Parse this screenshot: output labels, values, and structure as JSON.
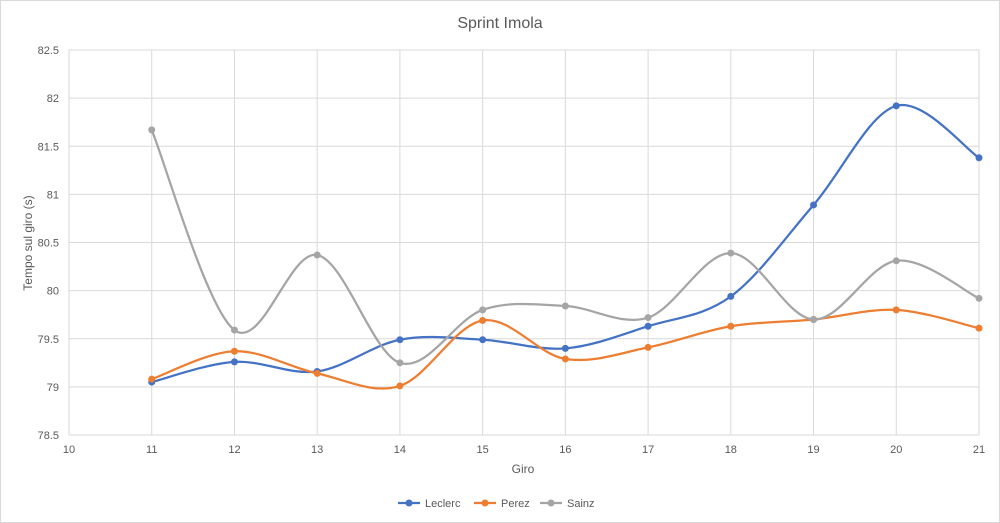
{
  "chart_data": {
    "type": "line",
    "title": "Sprint Imola",
    "xlabel": "Giro",
    "ylabel": "Tempo sul giro (s)",
    "xlim": [
      10,
      21
    ],
    "ylim": [
      78.5,
      82.5
    ],
    "x_ticks": [
      10,
      11,
      12,
      13,
      14,
      15,
      16,
      17,
      18,
      19,
      20,
      21
    ],
    "y_ticks": [
      78.5,
      79,
      79.5,
      80,
      80.5,
      81,
      81.5,
      82,
      82.5
    ],
    "grid": true,
    "smooth": true,
    "legend_position": "bottom",
    "x": [
      11,
      12,
      13,
      14,
      15,
      16,
      17,
      18,
      19,
      20,
      21
    ],
    "series": [
      {
        "name": "Leclerc",
        "color": "#4472c4",
        "values": [
          79.05,
          79.26,
          79.16,
          79.49,
          79.49,
          79.4,
          79.63,
          79.94,
          80.89,
          81.92,
          81.38
        ]
      },
      {
        "name": "Perez",
        "color": "#ed7d31",
        "values": [
          79.08,
          79.37,
          79.14,
          79.01,
          79.69,
          79.29,
          79.41,
          79.63,
          79.7,
          79.8,
          79.61
        ]
      },
      {
        "name": "Sainz",
        "color": "#a5a5a5",
        "values": [
          81.67,
          79.59,
          80.37,
          79.25,
          79.8,
          79.84,
          79.72,
          80.39,
          79.7,
          80.31,
          79.92
        ]
      }
    ]
  }
}
